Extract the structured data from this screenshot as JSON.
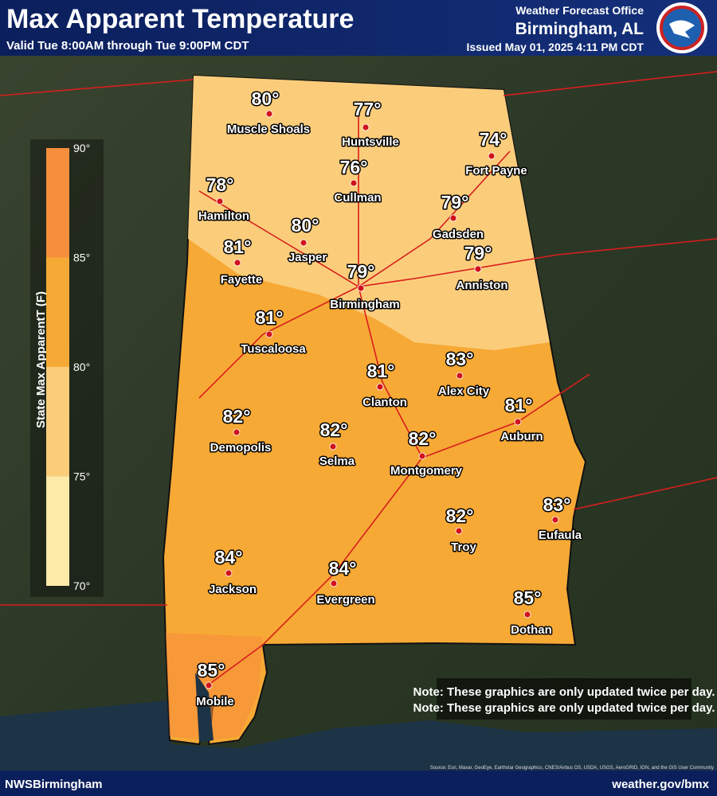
{
  "header": {
    "title": "Max Apparent Temperature",
    "subtitle": "Valid Tue 8:00AM through Tue 9:00PM CDT",
    "office": "Weather Forecast Office",
    "location": "Birmingham, AL",
    "issued": "Issued May 01, 2025 4:11 PM CDT"
  },
  "legend": {
    "title": "State Max ApparentT (F)",
    "ticks": [
      "90°",
      "85°",
      "80°",
      "75°",
      "70°"
    ],
    "colors": [
      "#f68e3c",
      "#f7a935",
      "#fbcd7b",
      "#fde9a8"
    ]
  },
  "cities": [
    {
      "name": "Muscle Shoals",
      "temp": "80°"
    },
    {
      "name": "Huntsville",
      "temp": "77°"
    },
    {
      "name": "Fort Payne",
      "temp": "74°"
    },
    {
      "name": "Hamilton",
      "temp": "78°"
    },
    {
      "name": "Cullman",
      "temp": "76°"
    },
    {
      "name": "Gadsden",
      "temp": "79°"
    },
    {
      "name": "Jasper",
      "temp": "80°"
    },
    {
      "name": "Fayette",
      "temp": "81°"
    },
    {
      "name": "Anniston",
      "temp": "79°"
    },
    {
      "name": "Birmingham",
      "temp": "79°"
    },
    {
      "name": "Tuscaloosa",
      "temp": "81°"
    },
    {
      "name": "Alex City",
      "temp": "83°"
    },
    {
      "name": "Clanton",
      "temp": "81°"
    },
    {
      "name": "Auburn",
      "temp": "81°"
    },
    {
      "name": "Demopolis",
      "temp": "82°"
    },
    {
      "name": "Selma",
      "temp": "82°"
    },
    {
      "name": "Montgomery",
      "temp": "82°"
    },
    {
      "name": "Troy",
      "temp": "82°"
    },
    {
      "name": "Eufaula",
      "temp": "83°"
    },
    {
      "name": "Jackson",
      "temp": "84°"
    },
    {
      "name": "Evergreen",
      "temp": "84°"
    },
    {
      "name": "Dothan",
      "temp": "85°"
    },
    {
      "name": "Mobile",
      "temp": "85°"
    }
  ],
  "note": "Note: These graphics are only updated twice per day.",
  "source": "Source: Esri, Maxar, GeoEye, Earthstar Geographics, CNES/Airbus DS, USDA, USGS, AeroGRID, IGN, and the GIS User Community",
  "footer": {
    "left": "NWSBirmingham",
    "right": "weather.gov/bmx"
  }
}
